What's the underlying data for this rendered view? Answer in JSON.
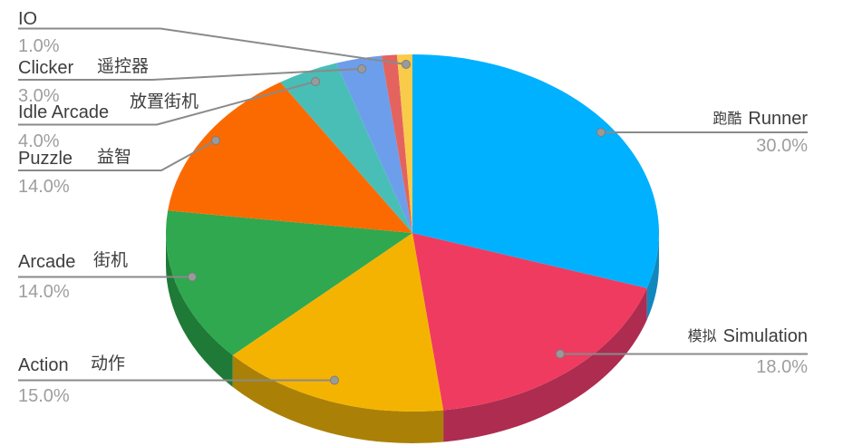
{
  "chart_data": {
    "type": "pie",
    "style": "3d",
    "title": "",
    "legend": "none (callout labels with leader lines)",
    "background_color": "#ffffff",
    "label_color": "#3d3d3d",
    "percent_color": "#9e9e9e",
    "leader_line_color": "#8a8a8a",
    "leader_dot_color": "#9a9a9a",
    "start_angle_deg": 0,
    "direction": "clockwise",
    "slices": [
      {
        "key": "runner",
        "label_en": "Runner",
        "label_zh": "跑酷",
        "zh_first": true,
        "value": 30.0,
        "pct_label": "30.0%",
        "color": "#00b1ff",
        "side_color": "#1287bd"
      },
      {
        "key": "simulation",
        "label_en": "Simulation",
        "label_zh": "模拟",
        "zh_first": true,
        "value": 18.0,
        "pct_label": "18.0%",
        "color": "#ef3b5f",
        "side_color": "#ad2c50"
      },
      {
        "key": "action",
        "label_en": "Action",
        "label_zh": "动作",
        "zh_first": false,
        "value": 15.0,
        "pct_label": "15.0%",
        "color": "#f5b301",
        "side_color": "#aa8106"
      },
      {
        "key": "arcade",
        "label_en": "Arcade",
        "label_zh": "街机",
        "zh_first": false,
        "value": 14.0,
        "pct_label": "14.0%",
        "color": "#2fa84f",
        "side_color": "#1e7a36"
      },
      {
        "key": "puzzle",
        "label_en": "Puzzle",
        "label_zh": "益智",
        "zh_first": false,
        "value": 14.0,
        "pct_label": "14.0%",
        "color": "#fb6a00",
        "side_color": "#b54d00"
      },
      {
        "key": "idle_arcade",
        "label_en": "Idle Arcade",
        "label_zh": "放置街机",
        "zh_first": false,
        "value": 4.0,
        "pct_label": "4.0%",
        "color": "#49beb7",
        "side_color": "#328a84"
      },
      {
        "key": "clicker",
        "label_en": "Clicker",
        "label_zh": "遥控器",
        "zh_first": false,
        "value": 3.0,
        "pct_label": "3.0%",
        "color": "#6d9eeb",
        "side_color": "#4e74b0"
      },
      {
        "key": "unlabeled",
        "label_en": "",
        "label_zh": "",
        "zh_first": false,
        "value": 1.0,
        "pct_label": "",
        "color": "#e4635f",
        "side_color": "#a64743"
      },
      {
        "key": "io",
        "label_en": "IO",
        "label_zh": "",
        "zh_first": false,
        "value": 1.0,
        "pct_label": "1.0%",
        "color": "#f9cb4a",
        "side_color": "#b69335"
      }
    ]
  }
}
